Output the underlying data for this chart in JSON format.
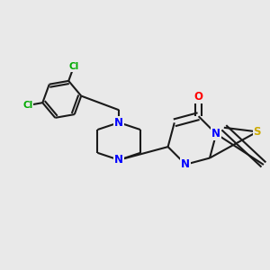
{
  "bg_color": "#e9e9e9",
  "bond_color": "#1a1a1a",
  "bond_width": 1.5,
  "atom_colors": {
    "N": "#0000ff",
    "S": "#ccaa00",
    "O": "#ff0000",
    "Cl": "#00aa00",
    "C": "#1a1a1a"
  },
  "font_size_atom": 8.5,
  "font_size_cl": 7.5,
  "xlim": [
    -3.5,
    4.0
  ],
  "ylim": [
    -2.5,
    2.5
  ]
}
